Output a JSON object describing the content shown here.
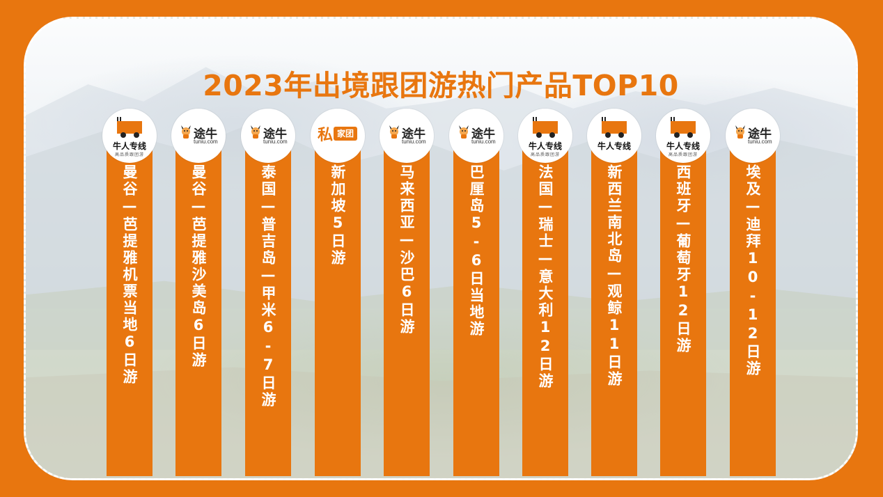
{
  "title": "2023年出境跟团游热门产品TOP10",
  "colors": {
    "accent": "#e8760f",
    "panel_border": "#ffffff"
  },
  "products": [
    {
      "logo": "niuren",
      "logo_text": "牛人专线",
      "logo_sub": "高品质跟团游",
      "name": "曼谷—芭提雅机票当地6日游"
    },
    {
      "logo": "tuniu",
      "logo_text": "途牛",
      "logo_sub": "tuniu.com",
      "name": "曼谷—芭提雅沙美岛6日游"
    },
    {
      "logo": "tuniu",
      "logo_text": "途牛",
      "logo_sub": "tuniu.com",
      "name": "泰国—普吉岛—甲米6-7日游"
    },
    {
      "logo": "sijia",
      "logo_text": "私家团",
      "logo_sub": "",
      "name": "新加坡5日游"
    },
    {
      "logo": "tuniu",
      "logo_text": "途牛",
      "logo_sub": "tuniu.com",
      "name": "马来西亚—沙巴6日游"
    },
    {
      "logo": "tuniu",
      "logo_text": "途牛",
      "logo_sub": "tuniu.com",
      "name": "巴厘岛5-6日当地游"
    },
    {
      "logo": "niuren",
      "logo_text": "牛人专线",
      "logo_sub": "高品质跟团游",
      "name": "法国—瑞士—意大利12日游"
    },
    {
      "logo": "niuren",
      "logo_text": "牛人专线",
      "logo_sub": "",
      "name": "新西兰南北岛—观鲸11日游"
    },
    {
      "logo": "niuren",
      "logo_text": "牛人专线",
      "logo_sub": "高品质跟团游",
      "name": "西班牙—葡萄牙12日游"
    },
    {
      "logo": "tuniu",
      "logo_text": "途牛",
      "logo_sub": "tuniu.com",
      "name": "埃及—迪拜10-12日游"
    }
  ]
}
